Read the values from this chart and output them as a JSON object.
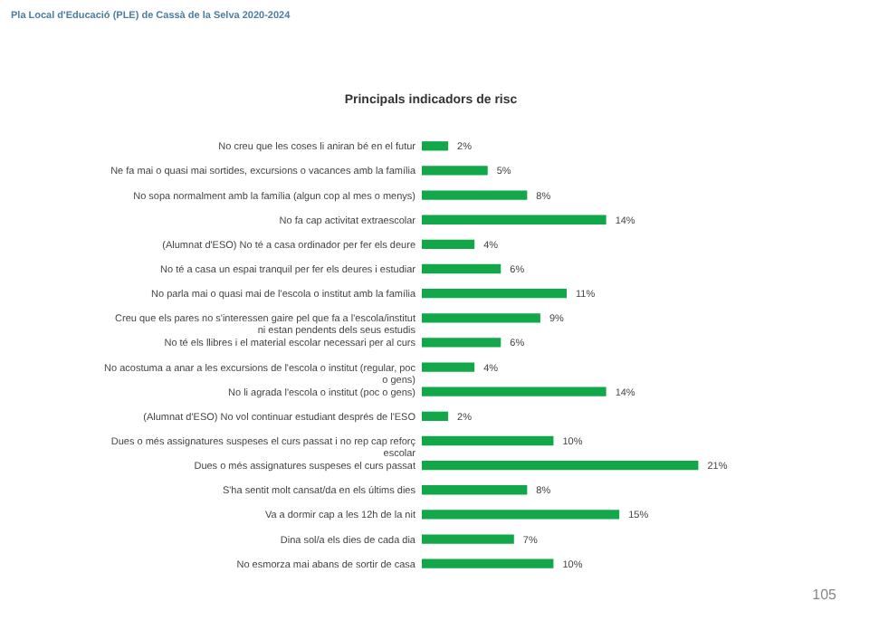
{
  "chart_data": {
    "type": "bar",
    "orientation": "horizontal",
    "title": "Principals indicadors de risc",
    "categories": [
      "No creu que les coses li aniran bé en el futur",
      "Ne fa mai o quasi mai sortides, excursions o vacances amb la família",
      "No sopa normalment amb la família (algun cop al mes o menys)",
      "No fa cap activitat extraescolar",
      "(Alumnat d'ESO) No té a casa ordinador per fer els deure",
      "No té a casa un espai tranquil per fer els deures i estudiar",
      "No parla mai o quasi mai de l'escola o institut amb la família",
      "Creu que els pares no s'interessen gaire pel que fa a l'escola/institut ni estan pendents dels seus estudis",
      "No té els llibres i el material escolar necessari per al curs",
      "No acostuma a anar a les excursions de l'escola o institut (regular, poc o gens)",
      "No li agrada l'escola o institut (poc o gens)",
      "(Alumnat d'ESO) No vol continuar estudiant després de l'ESO",
      "Dues o més assignatures suspeses el curs passat i no rep cap reforç escolar",
      "Dues o més assignatures suspeses el curs passat",
      "S'ha sentit molt cansat/da en els últims dies",
      "Va a dormir cap a les 12h de la nit",
      "Dina sol/a els dies de cada dia",
      "No esmorza mai abans de sortir de casa"
    ],
    "values": [
      2,
      5,
      8,
      14,
      4,
      6,
      11,
      9,
      6,
      4,
      14,
      2,
      10,
      21,
      8,
      15,
      7,
      10
    ],
    "value_labels": [
      "2%",
      "5%",
      "8%",
      "14%",
      "4%",
      "6%",
      "11%",
      "9%",
      "6%",
      "4%",
      "14%",
      "2%",
      "10%",
      "21%",
      "8%",
      "15%",
      "7%",
      "10%"
    ],
    "color": "#12a84a",
    "annotations": [
      "Pla Local d'Educació (PLE) de Cassà de la Selva 2020-2024",
      "105"
    ]
  }
}
